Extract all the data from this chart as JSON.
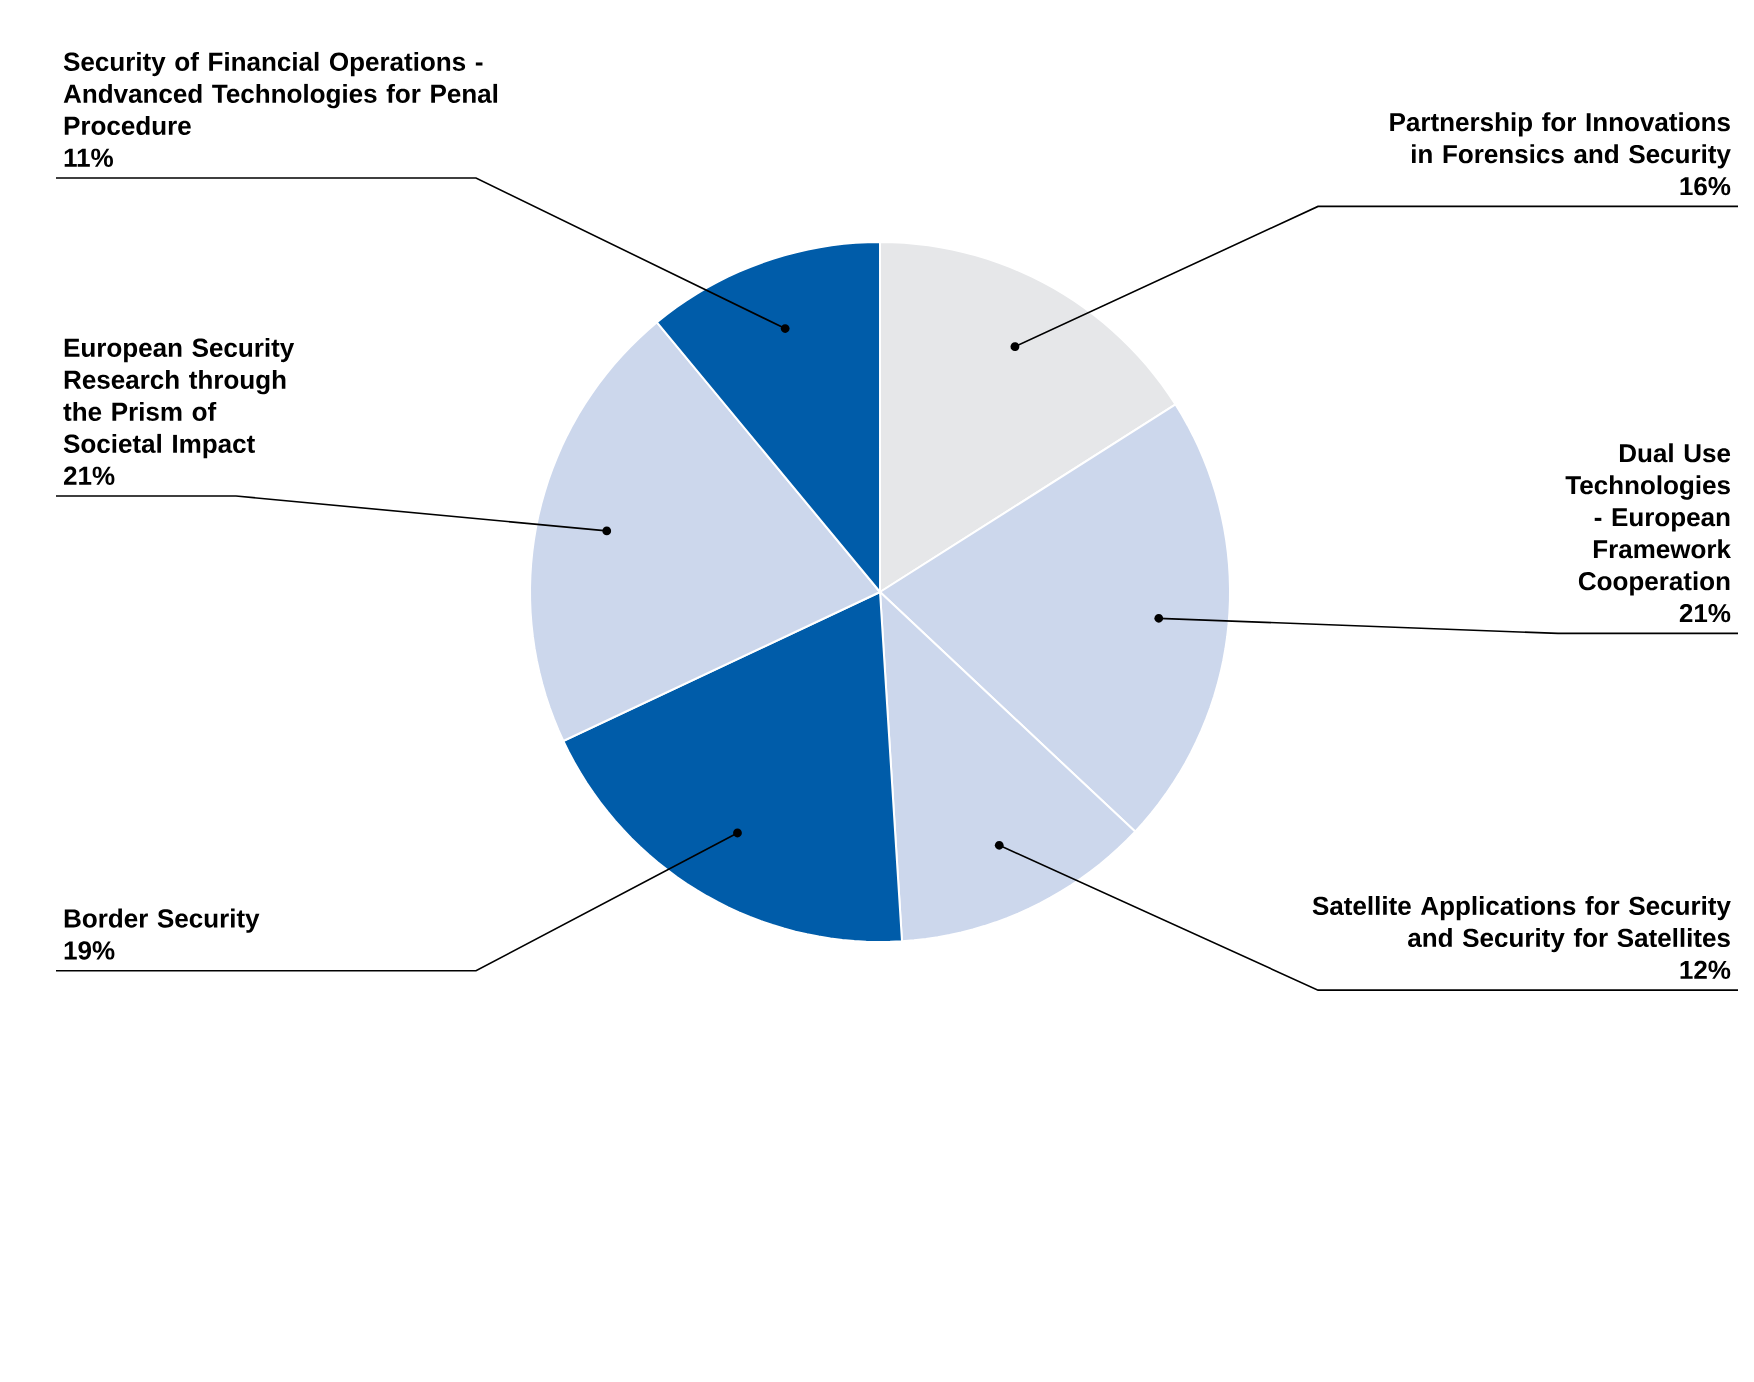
{
  "chart_data": {
    "type": "pie",
    "categories": [
      "Partnership for Innovations in Forensics and Security",
      "Dual Use Technologies - European Framework Cooperation",
      "Satellite Applications for Security and Security for Satellites",
      "Border Security",
      "European Security Research through the Prism of Societal Impact",
      "Security of Financial Operations - Andvanced Technologies for Penal Procedure"
    ],
    "values": [
      16,
      21,
      12,
      19,
      21,
      11
    ],
    "value_labels": [
      "16%",
      "21%",
      "12%",
      "19%",
      "21%",
      "11%"
    ],
    "colors": [
      "#e6e7e9",
      "#ccd7ec",
      "#ccd7ec",
      "#005ca9",
      "#ccd7ec",
      "#005ca9"
    ]
  }
}
